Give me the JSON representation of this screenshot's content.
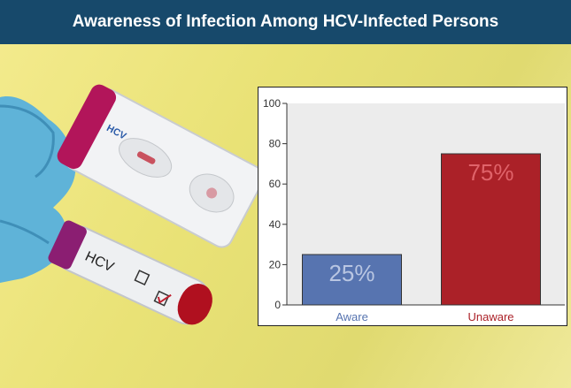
{
  "header": {
    "title": "Awareness of Infection Among HCV-Infected Persons"
  },
  "photo": {
    "tube_label": "HCV",
    "cassette_label": "HCV"
  },
  "colors": {
    "header_bg": "#17496b",
    "aware": "#5774b0",
    "unaware": "#ab2128",
    "plot_bg": "#ececec"
  },
  "chart_data": {
    "type": "bar",
    "categories": [
      "Aware",
      "Unaware"
    ],
    "values": [
      25,
      75
    ],
    "data_labels": [
      "25%",
      "75%"
    ],
    "ylim": [
      0,
      100
    ],
    "yticks": [
      0,
      20,
      40,
      60,
      80,
      100
    ],
    "xlabel": "",
    "ylabel": "",
    "grid": false
  }
}
